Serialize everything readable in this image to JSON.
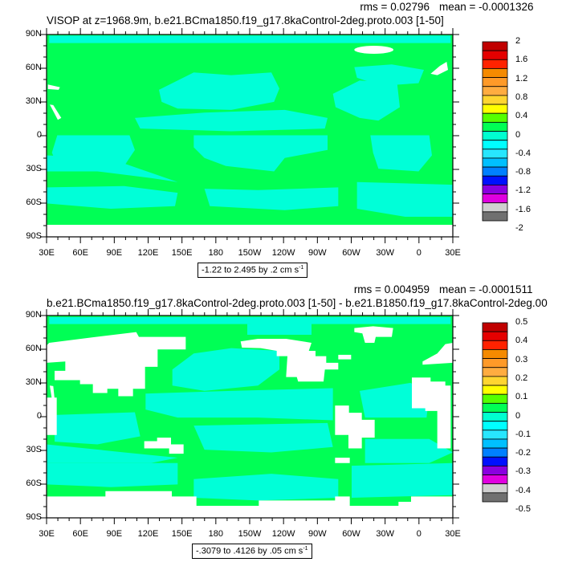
{
  "colors": {
    "map_green": "#00FF55",
    "map_cyan": "#00FFD8",
    "missing": "#FFFFFF",
    "colorbar": [
      "#C00000",
      "#E50000",
      "#FF2200",
      "#F58A00",
      "#FF9A28",
      "#FFAC40",
      "#FFD530",
      "#FFFF00",
      "#55FF00",
      "#00FF55",
      "#00FFD0",
      "#00FFFF",
      "#28E6FF",
      "#00C0FF",
      "#0080FF",
      "#0010FF",
      "#8A00E0",
      "#E000E0",
      "#D0D0D0",
      "#707070"
    ]
  },
  "lat_labels": [
    "90N",
    "60N",
    "30N",
    "0",
    "30S",
    "60S",
    "90S"
  ],
  "lon_labels": [
    "30E",
    "60E",
    "90E",
    "120E",
    "150E",
    "180",
    "150W",
    "120W",
    "90W",
    "60W",
    "30W",
    "0",
    "30E"
  ],
  "panels": [
    {
      "title": "VISOP at z=1968.9m, b.e21.BCma1850.f19_g17.8kaControl-2deg.proto.003 [1-50]",
      "mean": "mean = -0.0001326",
      "rms": "rms = 0.02796",
      "info": "-1.22 to 2.495 by .2 cm s",
      "info_sup": "-1",
      "colorbar_labels": [
        "2",
        "1.6",
        "1.2",
        "0.8",
        "0.4",
        "0",
        "-0.4",
        "-0.8",
        "-1.2",
        "-1.6",
        "-2"
      ]
    },
    {
      "title": "b.e21.BCma1850.f19_g17.8kaControl-2deg.proto.003 [1-50] - b.e21.B1850.f19_g17.8kaControl-2deg.00",
      "mean": "mean = -0.0001511",
      "rms": "rms = 0.004959",
      "info": "-.3079 to .4126 by .05 cm s",
      "info_sup": "-1",
      "colorbar_labels": [
        "0.5",
        "0.4",
        "0.3",
        "0.2",
        "0.1",
        "0",
        "-0.1",
        "-0.2",
        "-0.3",
        "-0.4",
        "-0.5"
      ]
    }
  ]
}
